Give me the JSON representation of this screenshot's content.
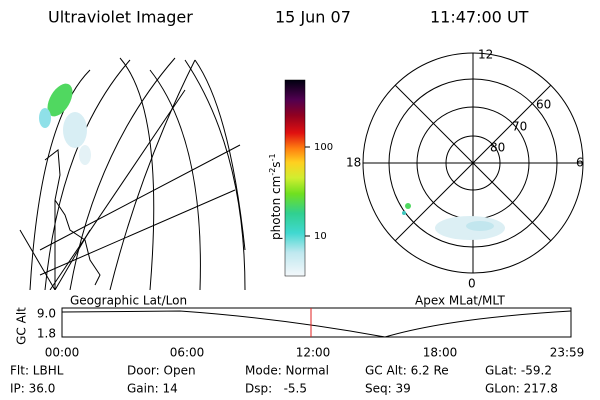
{
  "header": {
    "instrument": "Ultraviolet Imager",
    "date": "15 Jun 07",
    "time": "11:47:00 UT"
  },
  "colorbar": {
    "label": "photon cm",
    "exp1": "-2",
    "unit2": "s",
    "exp2": "-1",
    "ticks": [
      "100",
      "10"
    ]
  },
  "polar": {
    "hours": [
      "12",
      "18",
      "6",
      "0"
    ],
    "latitudes": [
      "60",
      "70",
      "80"
    ]
  },
  "panels": {
    "left_title": "Geographic Lat/Lon",
    "right_title": "Apex MLat/MLT"
  },
  "altitude": {
    "label": "GC Alt",
    "yticks": [
      "9.0",
      "1.8"
    ],
    "xticks": [
      "00:00",
      "06:00",
      "12:00",
      "18:00",
      "23:59"
    ]
  },
  "footer": {
    "rows": [
      [
        "Flt: LBHL",
        "Door: Open",
        "Mode: Normal",
        "GC Alt: 6.2 Re",
        "GLat: -59.2"
      ],
      [
        "IP: 36.0",
        "Gain: 14",
        "Dsp:   -5.5",
        "Seq: 39",
        "GLon: 217.8"
      ]
    ]
  }
}
